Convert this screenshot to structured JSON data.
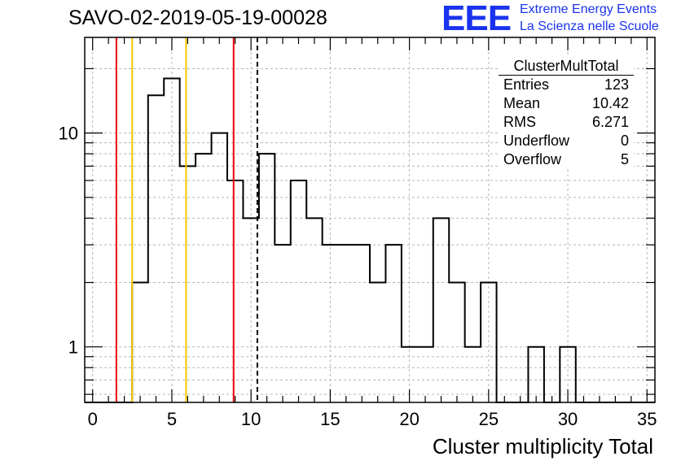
{
  "page": {
    "title": "SAVO-02-2019-05-19-00028",
    "logo": {
      "mark": "EEE",
      "line1": "Extreme Energy Events",
      "line2": "La Scienza nelle Scuole"
    }
  },
  "stats": {
    "title": "ClusterMultTotal",
    "rows": [
      {
        "label": "Entries",
        "value": "123"
      },
      {
        "label": "Mean",
        "value": "10.42"
      },
      {
        "label": "RMS",
        "value": "6.271"
      },
      {
        "label": "Underflow",
        "value": "0"
      },
      {
        "label": "Overflow",
        "value": "5"
      }
    ]
  },
  "chart_data": {
    "type": "bar",
    "style": "step-histogram",
    "title": "SAVO-02-2019-05-19-00028",
    "xlabel": "Cluster multiplicity Total",
    "ylabel": "",
    "xlim": [
      -0.5,
      35.5
    ],
    "ylim": [
      0.55,
      28
    ],
    "y_scale": "log",
    "grid": true,
    "x_ticks": [
      0,
      5,
      10,
      15,
      20,
      25,
      30,
      35
    ],
    "x_tick_labels": [
      "0",
      "5",
      "10",
      "15",
      "20",
      "25",
      "30",
      "35"
    ],
    "y_ticks": [
      1,
      10
    ],
    "y_tick_labels": [
      "1",
      "10"
    ],
    "bin_width": 1,
    "bin_centers": [
      0,
      1,
      2,
      3,
      4,
      5,
      6,
      7,
      8,
      9,
      10,
      11,
      12,
      13,
      14,
      15,
      16,
      17,
      18,
      19,
      20,
      21,
      22,
      23,
      24,
      25,
      26,
      27,
      28,
      29,
      30,
      31,
      32,
      33,
      34,
      35
    ],
    "values": [
      0,
      0,
      0,
      2,
      15,
      18,
      7,
      8,
      10,
      6,
      4,
      8,
      3,
      6,
      4,
      3,
      3,
      3,
      2,
      3,
      1,
      1,
      4,
      2,
      1,
      2,
      0,
      0,
      1,
      0,
      1,
      0,
      0,
      0,
      0,
      0
    ],
    "vertical_lines": [
      {
        "x": 1.5,
        "color": "#e8000b",
        "style": "solid"
      },
      {
        "x": 2.5,
        "color": "#f2c500",
        "style": "solid"
      },
      {
        "x": 5.9,
        "color": "#f2c500",
        "style": "solid"
      },
      {
        "x": 8.9,
        "color": "#e8000b",
        "style": "solid"
      },
      {
        "x": 10.4,
        "color": "#000000",
        "style": "dashed"
      }
    ]
  }
}
